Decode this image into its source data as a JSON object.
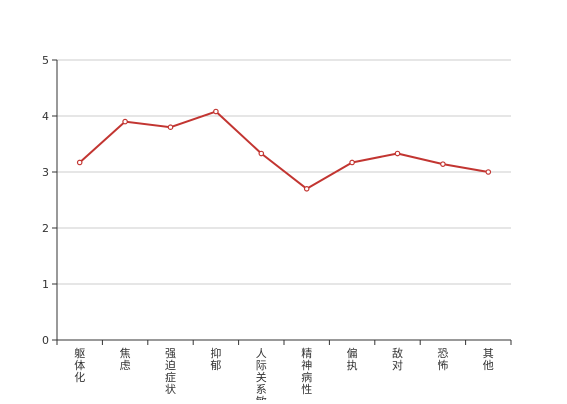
{
  "chart_data": {
    "type": "line",
    "categories": [
      "躯体化",
      "焦虑",
      "强迫症状",
      "抑郁",
      "人际关系敏感",
      "精神病性",
      "偏执",
      "敌对",
      "恐怖",
      "其他"
    ],
    "series": [
      {
        "values": [
          3.17,
          3.9,
          3.8,
          4.08,
          3.33,
          2.7,
          3.17,
          3.33,
          3.14,
          3.0
        ]
      }
    ],
    "yticks": [
      "0",
      "1",
      "2",
      "3",
      "4",
      "5"
    ],
    "ylim": [
      0,
      5
    ],
    "grid": "horizontal",
    "colors": {
      "line": "#c23531",
      "grid": "#cccccc",
      "axis": "#333333",
      "text": "#333333"
    }
  }
}
